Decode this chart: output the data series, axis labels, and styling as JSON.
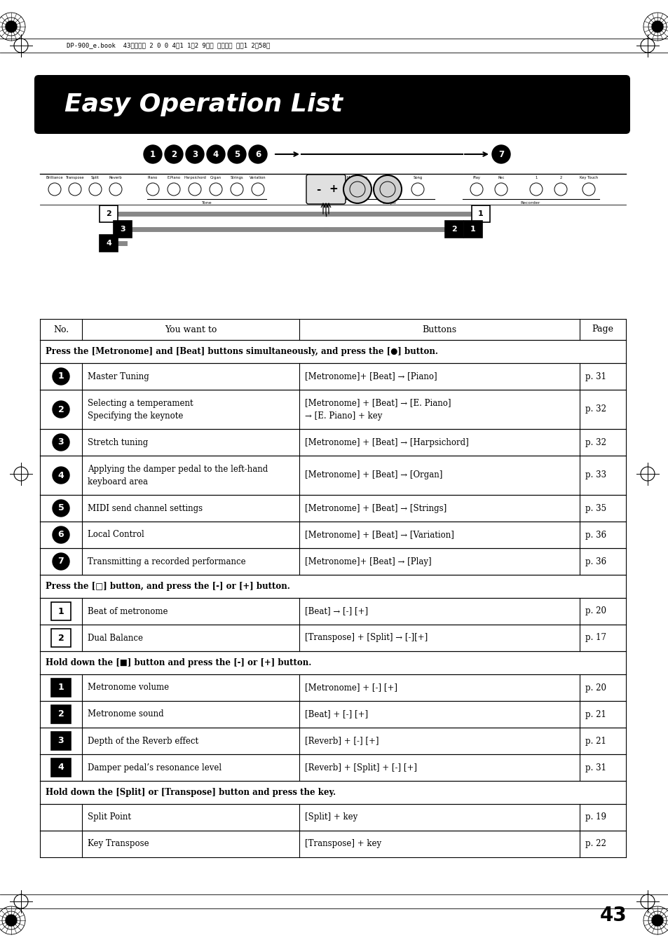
{
  "title": "Easy Operation List",
  "header_bg": "#000000",
  "header_text_color": "#ffffff",
  "page_bg": "#ffffff",
  "page_number": "43",
  "top_note": "DP-900_e.book 43ページ　2　0　0　4年1　1月　2　9日　月曜日　午後　1　2時　5〃8分",
  "section1_header": "Press the [Metronome] and [Beat] buttons simultaneously, and press the [●] button.",
  "section2_header": "Press the [□] button, and press the [-] or [+] button.",
  "section3_header": "Hold down the [■] button and press the [-] or [+] button.",
  "section4_header": "Hold down the [Split] or [Transpose] button and press the key.",
  "rows_section1": [
    {
      "no": "1",
      "style": "black_circle",
      "want": "Master Tuning",
      "want2": "",
      "buttons": "[Metronome]+ [Beat] → [Piano]",
      "buttons2": "",
      "page": "p. 31"
    },
    {
      "no": "2",
      "style": "black_circle",
      "want": "Selecting a temperament",
      "want2": "Specifying the keynote",
      "buttons": "[Metronome] + [Beat] → [E. Piano]",
      "buttons2": "→ [E. Piano] + key",
      "page": "p. 32"
    },
    {
      "no": "3",
      "style": "black_circle",
      "want": "Stretch tuning",
      "want2": "",
      "buttons": "[Metronome] + [Beat] → [Harpsichord]",
      "buttons2": "",
      "page": "p. 32"
    },
    {
      "no": "4",
      "style": "black_circle",
      "want": "Applying the damper pedal to the left-hand",
      "want2": "keyboard area",
      "buttons": "[Metronome] + [Beat] → [Organ]",
      "buttons2": "",
      "page": "p. 33"
    },
    {
      "no": "5",
      "style": "black_circle",
      "want": "MIDI send channel settings",
      "want2": "",
      "buttons": "[Metronome] + [Beat] → [Strings]",
      "buttons2": "",
      "page": "p. 35"
    },
    {
      "no": "6",
      "style": "black_circle",
      "want": "Local Control",
      "want2": "",
      "buttons": "[Metronome] + [Beat] → [Variation]",
      "buttons2": "",
      "page": "p. 36"
    },
    {
      "no": "7",
      "style": "black_circle",
      "want": "Transmitting a recorded performance",
      "want2": "",
      "buttons": "[Metronome]+ [Beat] → [Play]",
      "buttons2": "",
      "page": "p. 36"
    }
  ],
  "rows_section2": [
    {
      "no": "1",
      "style": "white_square",
      "want": "Beat of metronome",
      "want2": "",
      "buttons": "[Beat] → [-] [+]",
      "buttons2": "",
      "page": "p. 20"
    },
    {
      "no": "2",
      "style": "white_square",
      "want": "Dual Balance",
      "want2": "",
      "buttons": "[Transpose] + [Split] → [-][+]",
      "buttons2": "",
      "page": "p. 17"
    }
  ],
  "rows_section3": [
    {
      "no": "1",
      "style": "black_square",
      "want": "Metronome volume",
      "want2": "",
      "buttons": "[Metronome] + [-] [+]",
      "buttons2": "",
      "page": "p. 20"
    },
    {
      "no": "2",
      "style": "black_square",
      "want": "Metronome sound",
      "want2": "",
      "buttons": "[Beat] + [-] [+]",
      "buttons2": "",
      "page": "p. 21"
    },
    {
      "no": "3",
      "style": "black_square",
      "want": "Depth of the Reverb effect",
      "want2": "",
      "buttons": "[Reverb] + [-] [+]",
      "buttons2": "",
      "page": "p. 21"
    },
    {
      "no": "4",
      "style": "black_square",
      "want": "Damper pedal’s resonance level",
      "want2": "",
      "buttons": "[Reverb] + [Split] + [-] [+]",
      "buttons2": "",
      "page": "p. 31"
    }
  ],
  "rows_section4": [
    {
      "no": "",
      "style": "none",
      "want": "Split Point",
      "want2": "",
      "buttons": "[Split] + key",
      "buttons2": "",
      "page": "p. 19"
    },
    {
      "no": "",
      "style": "none",
      "want": "Key Transpose",
      "want2": "",
      "buttons": "[Transpose] + key",
      "buttons2": "",
      "page": "p. 22"
    }
  ]
}
